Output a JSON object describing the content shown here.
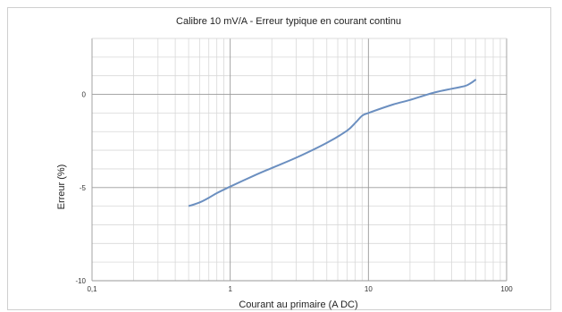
{
  "chart_data": {
    "type": "line",
    "title": "Calibre 10 mV/A - Erreur typique en courant continu",
    "xlabel": "Courant au primaire (A DC)",
    "ylabel": "Erreur (%)",
    "x_scale": "log",
    "xlim": [
      0.1,
      100
    ],
    "ylim": [
      -10,
      3
    ],
    "x_ticks": [
      {
        "value": 0.1,
        "label": "0,1"
      },
      {
        "value": 1,
        "label": "1"
      },
      {
        "value": 10,
        "label": "10"
      },
      {
        "value": 100,
        "label": "100"
      }
    ],
    "y_ticks": [
      {
        "value": 0,
        "label": "0"
      },
      {
        "value": -5,
        "label": "-5"
      },
      {
        "value": -10,
        "label": "-10"
      }
    ],
    "grid": true,
    "series": [
      {
        "color": "#6b8fc0",
        "x": [
          0.5,
          0.6,
          0.7,
          0.8,
          1,
          1.5,
          2,
          3,
          5,
          7,
          8,
          9,
          10,
          15,
          20,
          30,
          40,
          50,
          55,
          60
        ],
        "y": [
          -6.0,
          -5.8,
          -5.55,
          -5.3,
          -4.95,
          -4.35,
          -3.95,
          -3.4,
          -2.6,
          -1.95,
          -1.55,
          -1.15,
          -1.0,
          -0.55,
          -0.3,
          0.1,
          0.3,
          0.45,
          0.6,
          0.8
        ]
      }
    ]
  }
}
